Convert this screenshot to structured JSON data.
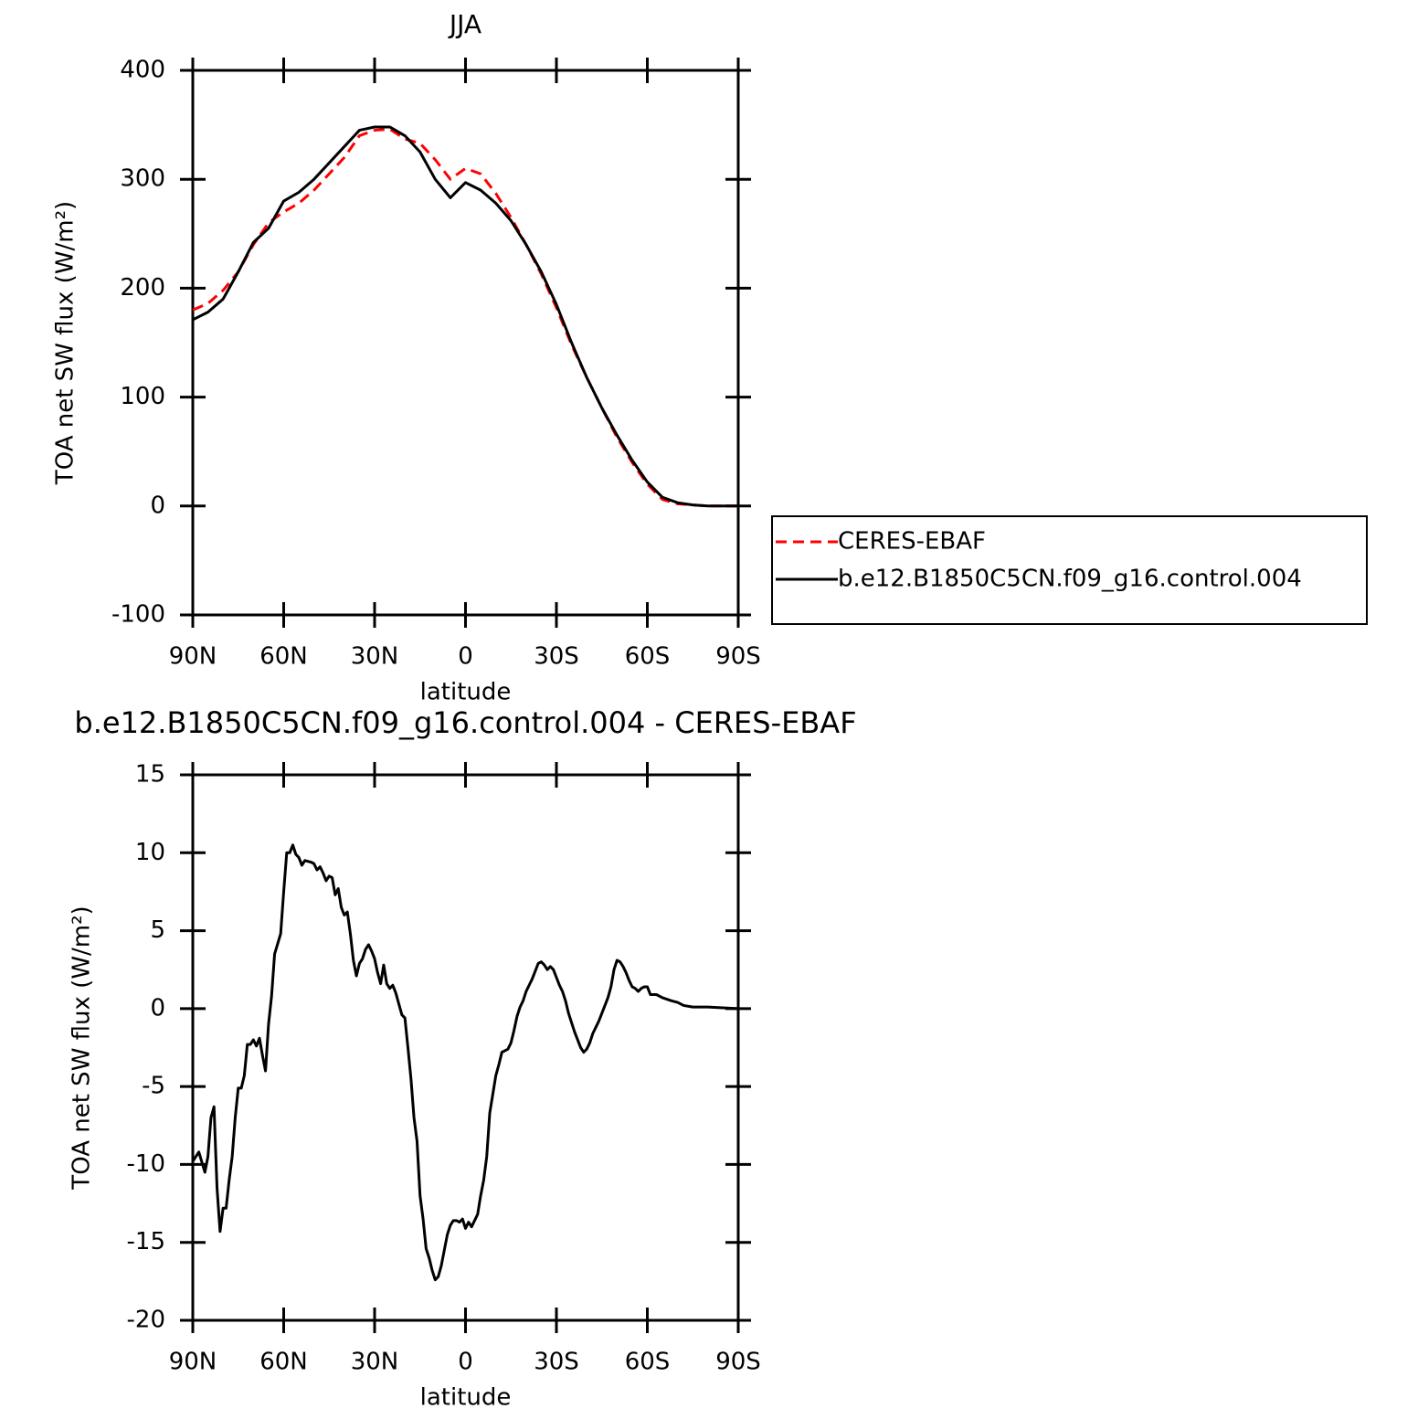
{
  "chart_data": [
    {
      "type": "line",
      "title": "JJA",
      "xlabel": "latitude",
      "ylabel": "TOA net SW flux (W/m²)",
      "x": [
        90,
        85,
        80,
        75,
        70,
        65,
        60,
        55,
        50,
        45,
        40,
        35,
        30,
        25,
        20,
        15,
        10,
        5,
        0,
        -5,
        -10,
        -15,
        -20,
        -25,
        -30,
        -35,
        -40,
        -45,
        -50,
        -55,
        -60,
        -65,
        -70,
        -75,
        -80,
        -85,
        -90
      ],
      "series": [
        {
          "name": "CERES-EBAF",
          "color": "#ff0000",
          "linestyle": "dashed",
          "values": [
            180,
            186,
            198,
            215,
            240,
            260,
            270,
            278,
            290,
            305,
            320,
            340,
            345,
            346,
            337,
            333,
            318,
            300,
            310,
            305,
            287,
            265,
            240,
            213,
            182,
            148,
            118,
            90,
            63,
            40,
            20,
            6,
            2,
            1,
            0,
            0,
            0
          ]
        },
        {
          "name": "b.e12.B1850C5CN.f09_g16.control.004",
          "color": "#000000",
          "linestyle": "solid",
          "values": [
            171,
            178,
            190,
            215,
            242,
            255,
            280,
            288,
            300,
            315,
            330,
            345,
            348,
            348,
            340,
            325,
            300,
            283,
            297,
            290,
            278,
            262,
            240,
            215,
            185,
            150,
            118,
            90,
            65,
            42,
            22,
            8,
            3,
            1,
            0,
            0,
            0
          ]
        }
      ],
      "xlim": [
        90,
        -90
      ],
      "xticks": [
        {
          "value": 90,
          "label": "90N"
        },
        {
          "value": 60,
          "label": "60N"
        },
        {
          "value": 30,
          "label": "30N"
        },
        0,
        {
          "value": -30,
          "label": "30S"
        },
        {
          "value": -60,
          "label": "60S"
        },
        {
          "value": -90,
          "label": "90S"
        }
      ],
      "ylim": [
        -100,
        400
      ],
      "yticks": [
        -100,
        0,
        100,
        200,
        300,
        400
      ],
      "legend": "right"
    },
    {
      "type": "line",
      "title": "b.e12.B1850C5CN.f09_g16.control.004 - CERES-EBAF",
      "xlabel": "latitude",
      "ylabel": "TOA net SW flux (W/m²)",
      "x": [
        90,
        88,
        86,
        85,
        84,
        83,
        82,
        81,
        80,
        79,
        78,
        77,
        76,
        75,
        74,
        73,
        72,
        71,
        70,
        69,
        68,
        67,
        66,
        65,
        64,
        63,
        61,
        60,
        59,
        58,
        57,
        56,
        55,
        54,
        53,
        51,
        50,
        49,
        48,
        47,
        46,
        45,
        44,
        43,
        42,
        41,
        40,
        39,
        38,
        37,
        36,
        35,
        34,
        33,
        32,
        31,
        30,
        29,
        28,
        27,
        26,
        25,
        24,
        23,
        22,
        21,
        20,
        19,
        18,
        17,
        16,
        15,
        14,
        13,
        12,
        11,
        10,
        9,
        8,
        7,
        6,
        5,
        4,
        3,
        2,
        1,
        0,
        -1,
        -2,
        -3,
        -4,
        -5,
        -6,
        -7,
        -8,
        -9,
        -10,
        -11,
        -12,
        -13,
        -14,
        -15,
        -16,
        -17,
        -18,
        -19,
        -20,
        -21,
        -22,
        -23,
        -24,
        -25,
        -26,
        -27,
        -28,
        -29,
        -30,
        -31,
        -32,
        -33,
        -34,
        -35,
        -36,
        -37,
        -38,
        -39,
        -40,
        -41,
        -42,
        -43,
        -44,
        -45,
        -46,
        -47,
        -48,
        -49,
        -50,
        -51,
        -52,
        -53,
        -54,
        -55,
        -56,
        -57,
        -58,
        -59,
        -60,
        -61,
        -63,
        -65,
        -68,
        -70,
        -72,
        -75,
        -80,
        -85,
        -90
      ],
      "values": [
        -9.8,
        -9.2,
        -10.5,
        -9.5,
        -7,
        -6.3,
        -11.5,
        -14.3,
        -12.8,
        -12.8,
        -11,
        -9.5,
        -7,
        -5.1,
        -5.1,
        -4.3,
        -2.3,
        -2.3,
        -2,
        -2.4,
        -1.9,
        -3,
        -4,
        -1,
        0.8,
        3.5,
        4.8,
        7.5,
        10,
        10,
        10.5,
        9.9,
        9.7,
        9.2,
        9.5,
        9.4,
        9.3,
        8.9,
        9.1,
        8.7,
        8.2,
        8.5,
        8.4,
        7.3,
        7.7,
        6.5,
        6,
        6.2,
        4.8,
        3.1,
        2.1,
        2.9,
        3.2,
        3.8,
        4.1,
        3.7,
        3.2,
        2.3,
        1.6,
        2.8,
        1.6,
        1.3,
        1.5,
        1,
        0.3,
        -0.4,
        -0.6,
        -2.5,
        -4.5,
        -7,
        -8.5,
        -12,
        -13.5,
        -15.4,
        -16,
        -16.8,
        -17.4,
        -17.2,
        -16.5,
        -15.5,
        -14.5,
        -13.9,
        -13.6,
        -13.6,
        -13.7,
        -13.5,
        -14.1,
        -13.7,
        -14,
        -13.6,
        -13.2,
        -12,
        -11,
        -9.5,
        -6.7,
        -5.5,
        -4.3,
        -3.6,
        -2.8,
        -2.7,
        -2.6,
        -2.2,
        -1.4,
        -0.5,
        0.1,
        0.5,
        1.1,
        1.5,
        1.9,
        2.4,
        2.9,
        3,
        2.8,
        2.5,
        2.7,
        2.5,
        2,
        1.5,
        1.1,
        0.5,
        -0.3,
        -0.9,
        -1.5,
        -2,
        -2.5,
        -2.8,
        -2.6,
        -2.2,
        -1.6,
        -1.2,
        -0.8,
        -0.3,
        0.2,
        0.7,
        1.4,
        2.5,
        3.1,
        3,
        2.7,
        2.3,
        1.8,
        1.4,
        1.3,
        1.1,
        1.3,
        1.4,
        1.4,
        0.9,
        0.9,
        0.7,
        0.5,
        0.4,
        0.2,
        0.1,
        0.1,
        0.05,
        0
      ],
      "color": "#000000",
      "xlim": [
        90,
        -90
      ],
      "xticks": [
        {
          "value": 90,
          "label": "90N"
        },
        {
          "value": 60,
          "label": "60N"
        },
        {
          "value": 30,
          "label": "30N"
        },
        0,
        {
          "value": -30,
          "label": "30S"
        },
        {
          "value": -60,
          "label": "60S"
        },
        {
          "value": -90,
          "label": "90S"
        }
      ],
      "ylim": [
        -20,
        15
      ],
      "yticks": [
        -20,
        -15,
        -10,
        -5,
        0,
        5,
        10,
        15
      ]
    }
  ]
}
